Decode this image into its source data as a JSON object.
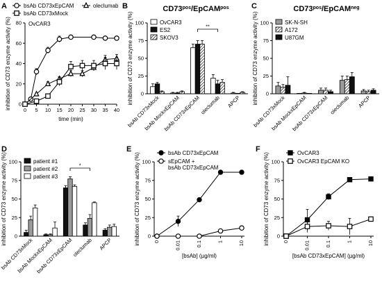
{
  "figure": {
    "panels": {
      "A": "A",
      "B": "B",
      "C": "C",
      "D": "D",
      "E": "E",
      "F": "F"
    }
  },
  "chart_data": [
    {
      "panel": "A",
      "type": "line",
      "xlabel": "time  (min)",
      "ylabel": "inhibition of CD73 enzyme activity  (%)",
      "xlim": [
        0,
        40
      ],
      "ylim": [
        0,
        80
      ],
      "xticks": [
        0,
        5,
        10,
        15,
        20,
        25,
        30,
        35,
        40
      ],
      "yticks": [
        0,
        20,
        40,
        60,
        80
      ],
      "annotation": "OvCAR3",
      "legend": "top",
      "series": [
        {
          "name": "bsAb CD73xEpCAM",
          "marker": "circle-open",
          "x": [
            0,
            2.5,
            5,
            10,
            15,
            20,
            30,
            35,
            40
          ],
          "y": [
            0,
            5,
            32,
            53,
            64,
            66,
            66,
            65,
            65
          ],
          "err": [
            0,
            1,
            3,
            3,
            3,
            1,
            1,
            1,
            1
          ]
        },
        {
          "name": "oleclumab",
          "marker": "triangle-open",
          "x": [
            0,
            5,
            10,
            15,
            20,
            25,
            30,
            35,
            40
          ],
          "y": [
            0,
            10,
            20,
            25,
            30,
            30,
            36,
            44,
            45
          ],
          "err": [
            0,
            1,
            2,
            2,
            3,
            3,
            3,
            4,
            4
          ]
        },
        {
          "name": "bsAb CD73xMock",
          "marker": "square-open",
          "x": [
            0,
            5,
            10,
            15,
            20,
            25,
            30,
            35,
            40
          ],
          "y": [
            0,
            3,
            8,
            22,
            37,
            38,
            38,
            40,
            40
          ],
          "err": [
            0,
            1,
            2,
            4,
            5,
            5,
            5,
            6,
            6
          ]
        }
      ]
    },
    {
      "panel": "B",
      "type": "bar",
      "title": "CD73pos/EpCAMpos",
      "title_parts": [
        "CD73",
        "pos",
        "/EpCAM",
        "pos"
      ],
      "ylabel": "inhibition of CD73 enzyme activity  (%)",
      "ylim": [
        0,
        100
      ],
      "yticks": [
        0,
        25,
        50,
        75,
        100
      ],
      "legend": "top-left",
      "categories": [
        "bsAb CD73xMock",
        "bsAb MockxEpCAM",
        "bsAb CD73xEpCAM",
        "oleclumab",
        "APCP"
      ],
      "series": [
        {
          "name": "OvCAR3",
          "fill": "white",
          "values": [
            10,
            1,
            65,
            22,
            1
          ],
          "err": [
            4,
            1,
            5,
            5,
            1
          ]
        },
        {
          "name": "ES2",
          "fill": "black",
          "values": [
            14,
            1,
            70,
            14,
            0
          ],
          "err": [
            2,
            1,
            5,
            5,
            0
          ]
        },
        {
          "name": "SKOV3",
          "fill": "hatch",
          "values": [
            3,
            3,
            70,
            16,
            2
          ],
          "err": [
            1,
            1,
            5,
            4,
            1
          ]
        }
      ],
      "significance": [
        {
          "label": "**",
          "between": [
            "bsAb CD73xEpCAM",
            "oleclumab"
          ]
        }
      ]
    },
    {
      "panel": "C",
      "type": "bar",
      "title": "CD73pos/EpCAMneg",
      "title_parts": [
        "CD73",
        "pos",
        "/EpCAM",
        "neg"
      ],
      "ylabel": "inhibition of CD73 enzyme activity  (%)",
      "ylim": [
        0,
        100
      ],
      "yticks": [
        0,
        25,
        50,
        75,
        100
      ],
      "legend": "top-left",
      "categories": [
        "bsAb CD73xMock",
        "bsAb MockxEpCAM",
        "bsAb CD73xEpCAM",
        "oleclumab",
        "APCP"
      ],
      "series": [
        {
          "name": "SK-N-SH",
          "fill": "gray",
          "values": [
            11,
            0,
            5,
            19,
            4
          ],
          "err": [
            5,
            0,
            3,
            6,
            2
          ]
        },
        {
          "name": "A172",
          "fill": "hatch",
          "values": [
            9,
            1,
            5,
            20,
            3
          ],
          "err": [
            4,
            1,
            3,
            5,
            2
          ]
        },
        {
          "name": "U87GM",
          "fill": "black",
          "values": [
            12,
            0,
            3,
            24,
            5
          ],
          "err": [
            12,
            0,
            2,
            6,
            2
          ]
        }
      ]
    },
    {
      "panel": "D",
      "type": "bar",
      "ylabel": "inhibition of CD73 enzyme activity  (%)",
      "ylim": [
        0,
        100
      ],
      "yticks": [
        0,
        25,
        50,
        75,
        100
      ],
      "legend": "top-left",
      "categories": [
        "bsAb CD73xMock",
        "bsAb MockxEpCAM",
        "bsAb CD73xEpCAM",
        "oleclumab",
        "APCP"
      ],
      "series": [
        {
          "name": "patient #1",
          "fill": "black",
          "values": [
            5,
            2,
            65,
            15,
            8
          ],
          "err": [
            3,
            1,
            3,
            3,
            2
          ]
        },
        {
          "name": "patient #2",
          "fill": "gray",
          "values": [
            22,
            2,
            77,
            24,
            12
          ],
          "err": [
            5,
            1,
            3,
            5,
            3
          ]
        },
        {
          "name": "patient #3",
          "fill": "white",
          "values": [
            38,
            11,
            67,
            45,
            13
          ],
          "err": [
            4,
            8,
            2,
            1,
            3
          ]
        }
      ],
      "significance": [
        {
          "label": "*",
          "between": [
            "bsAb CD73xEpCAM",
            "oleclumab"
          ]
        }
      ]
    },
    {
      "panel": "E",
      "type": "line",
      "xscale": "log",
      "xlabel": "[bsAb]  (µg/ml)",
      "ylabel": "inhibition of CD73 enzyme activity  (%)",
      "xtick_labels": [
        "0",
        "0.01",
        "0.1",
        "1",
        "10"
      ],
      "yticks": [
        0,
        25,
        50,
        75,
        100
      ],
      "ylim": [
        0,
        100
      ],
      "legend": "top-left",
      "series": [
        {
          "name": "bsAb CD73xEpCAM",
          "marker": "circle-filled",
          "x": [
            0,
            0.01,
            0.1,
            1,
            10
          ],
          "y": [
            0,
            20,
            49,
            86,
            86
          ],
          "err": [
            0,
            7,
            2,
            1,
            1
          ]
        },
        {
          "name": "sEpCAM + bsAb CD73xEpCAM",
          "name_lines": [
            "sEpCAM +",
            "bsAb CD73xEpCAM"
          ],
          "marker": "circle-open",
          "x": [
            0,
            0.01,
            0.1,
            1,
            10
          ],
          "y": [
            0,
            0,
            0,
            7,
            11
          ],
          "err": [
            0,
            0,
            1,
            2,
            1
          ]
        }
      ]
    },
    {
      "panel": "F",
      "type": "line",
      "xscale": "log",
      "xlabel": "[bsAb CD73xEpCAM]  (µg/ml)",
      "ylabel": "inhibition of CD73 enzyme activity  (%)",
      "xtick_labels": [
        "0",
        "0.01",
        "0.1",
        "1",
        "10"
      ],
      "yticks": [
        0,
        25,
        50,
        75,
        100
      ],
      "ylim": [
        0,
        100
      ],
      "legend": "top-left",
      "series": [
        {
          "name": "OvCAR3",
          "marker": "square-filled",
          "x": [
            0,
            0.01,
            0.1,
            1,
            10
          ],
          "y": [
            0,
            22,
            53,
            76,
            77
          ],
          "err": [
            0,
            14,
            4,
            2,
            1
          ]
        },
        {
          "name": "OvCAR3 EpCAM KO",
          "marker": "square-open",
          "x": [
            0,
            0.01,
            0.1,
            1,
            10
          ],
          "y": [
            0,
            13,
            14,
            13,
            23
          ],
          "err": [
            0,
            8,
            6,
            11,
            2
          ]
        }
      ]
    }
  ]
}
